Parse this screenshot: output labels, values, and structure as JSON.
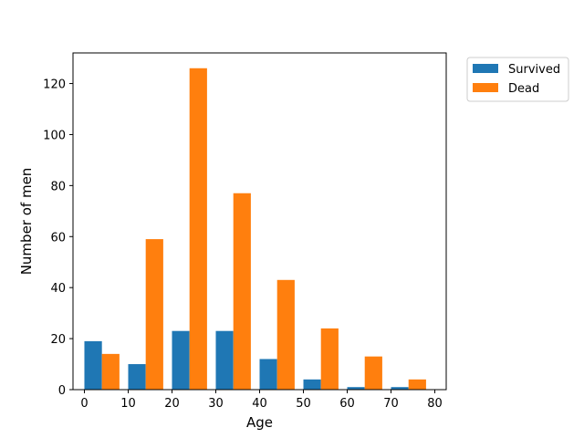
{
  "chart_data": {
    "type": "bar",
    "title": "",
    "xlabel": "Age",
    "ylabel": "Number of men",
    "xlim": [
      -2.6,
      82.6
    ],
    "ylim": [
      0,
      132
    ],
    "xticks": [
      0,
      10,
      20,
      30,
      40,
      50,
      60,
      70,
      80
    ],
    "yticks": [
      0,
      20,
      40,
      60,
      80,
      100,
      120
    ],
    "bin_edges": [
      0,
      10,
      20,
      30,
      40,
      50,
      60,
      70,
      80
    ],
    "series": [
      {
        "name": "Survived",
        "color": "#1f77b4",
        "values": [
          19,
          10,
          23,
          23,
          12,
          4,
          1,
          1
        ]
      },
      {
        "name": "Dead",
        "color": "#ff7f0e",
        "values": [
          14,
          59,
          126,
          77,
          43,
          24,
          13,
          4
        ]
      }
    ],
    "grid": false,
    "legend_position": "outside-top-right"
  }
}
